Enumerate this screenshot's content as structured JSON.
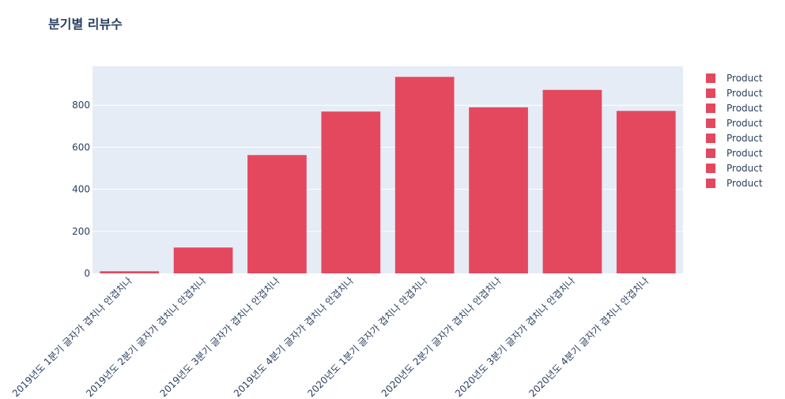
{
  "chart_data": {
    "type": "bar",
    "title": "분기별 리뷰수",
    "xlabel": "",
    "ylabel": "",
    "categories": [
      "2019년도 1분기 글자가 겹치나 안겹치나",
      "2019년도 2분기 글자가 겹치나 안겹치나",
      "2019년도 3분기 글자가 겹치나 안겹치나",
      "2019년도 4분기 글자가 겹치나 안겹치나",
      "2020년도 1분기 글자가 겹치나 안겹치나",
      "2020년도 2분기 글자가 겹치나 안겹치나",
      "2020년도 3분기 글자가 겹치나 안겹치나",
      "2020년도 4분기 글자가 겹치나 안겹치나"
    ],
    "values": [
      10,
      123,
      563,
      770,
      935,
      790,
      873,
      773
    ],
    "series_names": [
      "Product",
      "Product",
      "Product",
      "Product",
      "Product",
      "Product",
      "Product",
      "Product"
    ],
    "ylim": [
      0,
      985
    ],
    "yticks": [
      0,
      200,
      400,
      600,
      800
    ],
    "grid": true,
    "legend_position": "top-right",
    "colors": {
      "bar": "#e4485e",
      "plot_background": "#e5ecf6",
      "grid": "#ffffff",
      "text": "#2a3f5f"
    }
  }
}
